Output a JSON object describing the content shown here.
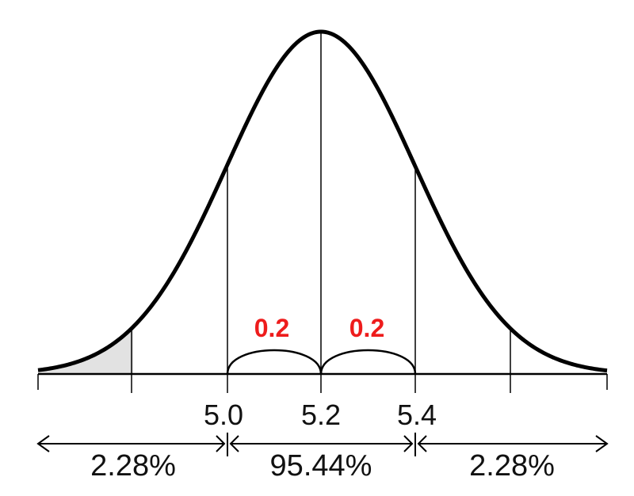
{
  "diagram": {
    "center_label": "5.2",
    "left_label": "5.0",
    "right_label": "5.4",
    "step_left": "0.2",
    "step_right": "0.2",
    "pct_left": "2.28%",
    "pct_middle": "95.44%",
    "pct_right": "2.28%",
    "colors": {
      "curve": "#000000",
      "shade": "#e2e2e2",
      "step_label": "#ee1c1c"
    }
  }
}
